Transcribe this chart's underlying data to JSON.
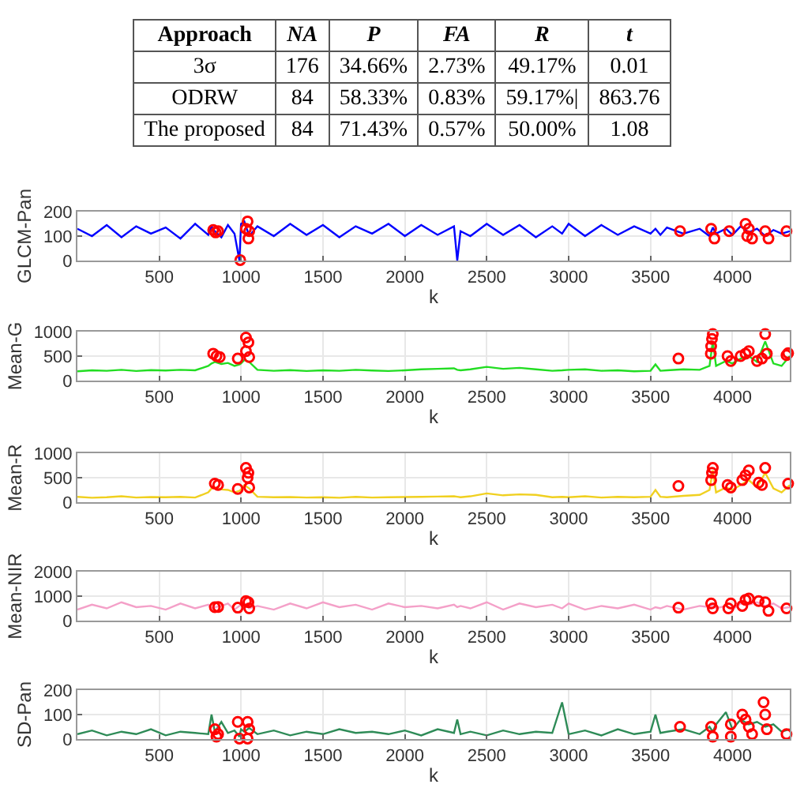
{
  "chart_data": [
    {
      "type": "other",
      "categories": [
        "Approach",
        "NA",
        "P",
        "FA",
        "R",
        "t"
      ],
      "annotations": [
        "3σ",
        "176",
        "34.66%",
        "2.73%",
        "49.17%",
        "0.01",
        "ODRW",
        "84",
        "58.33%",
        "0.83%",
        "59.17%|",
        "863.76",
        "The proposed",
        "84",
        "71.43%",
        "0.57%",
        "50.00%",
        "1.08"
      ]
    },
    {
      "type": "line",
      "xlabel": "k",
      "ylabel": "GLCM-Pan",
      "xlim": [
        1,
        4350
      ],
      "xticks": [
        500,
        1000,
        1500,
        2000,
        2500,
        3000,
        3500,
        4000
      ],
      "ylim": [
        0,
        200
      ],
      "yticks": [
        0,
        100,
        200
      ],
      "grid": true,
      "x": [
        1,
        90,
        180,
        270,
        360,
        450,
        540,
        630,
        720,
        800,
        820,
        840,
        880,
        920,
        960,
        990,
        1000,
        1020,
        1050,
        1100,
        1200,
        1300,
        1400,
        1500,
        1600,
        1700,
        1800,
        1900,
        2000,
        2100,
        2200,
        2300,
        2320,
        2340,
        2400,
        2500,
        2600,
        2700,
        2800,
        2900,
        2960,
        3000,
        3100,
        3200,
        3300,
        3400,
        3500,
        3530,
        3560,
        3600,
        3700,
        3800,
        3860,
        3880,
        3900,
        3960,
        4000,
        4050,
        4100,
        4150,
        4200,
        4250,
        4300,
        4350
      ],
      "series": [
        {
          "color": "#0000ff",
          "values": [
            130,
            100,
            145,
            95,
            140,
            110,
            135,
            90,
            150,
            105,
            140,
            120,
            95,
            145,
            110,
            0,
            150,
            160,
            100,
            140,
            100,
            150,
            105,
            145,
            95,
            140,
            110,
            150,
            100,
            145,
            105,
            140,
            0,
            120,
            100,
            150,
            105,
            145,
            95,
            140,
            110,
            150,
            100,
            145,
            105,
            140,
            110,
            130,
            105,
            135,
            110,
            130,
            100,
            135,
            110,
            130,
            105,
            140,
            115,
            130,
            100,
            125,
            110,
            120
          ]
        },
        {
          "type": "scatter",
          "marker": "circle",
          "color": "#ff0000",
          "x": [
            830,
            845,
            860,
            995,
            1030,
            1040,
            1045,
            1050,
            3680,
            3870,
            3890,
            3980,
            4080,
            4090,
            4100,
            4120,
            4200,
            4220,
            4330
          ],
          "values": [
            125,
            115,
            120,
            2,
            130,
            160,
            90,
            120,
            120,
            130,
            90,
            120,
            150,
            100,
            130,
            90,
            120,
            90,
            120
          ]
        }
      ]
    },
    {
      "type": "line",
      "xlabel": "k",
      "ylabel": "Mean-G",
      "xlim": [
        1,
        4350
      ],
      "xticks": [
        500,
        1000,
        1500,
        2000,
        2500,
        3000,
        3500,
        4000
      ],
      "ylim": [
        0,
        1000
      ],
      "yticks": [
        0,
        500,
        1000
      ],
      "grid": true,
      "x": [
        1,
        90,
        180,
        270,
        360,
        450,
        540,
        630,
        720,
        800,
        820,
        840,
        880,
        920,
        960,
        990,
        1000,
        1020,
        1050,
        1100,
        1200,
        1300,
        1400,
        1500,
        1600,
        1700,
        1800,
        1900,
        2000,
        2100,
        2200,
        2300,
        2320,
        2340,
        2400,
        2500,
        2600,
        2700,
        2800,
        2900,
        2960,
        3000,
        3100,
        3200,
        3300,
        3400,
        3500,
        3530,
        3560,
        3600,
        3700,
        3800,
        3860,
        3880,
        3900,
        3960,
        4000,
        4050,
        4100,
        4150,
        4200,
        4250,
        4300,
        4350
      ],
      "series": [
        {
          "color": "#22dd22",
          "values": [
            190,
            210,
            200,
            220,
            195,
            215,
            205,
            220,
            210,
            300,
            350,
            380,
            340,
            360,
            300,
            330,
            350,
            420,
            380,
            220,
            200,
            215,
            195,
            210,
            200,
            220,
            205,
            195,
            210,
            230,
            240,
            250,
            220,
            210,
            230,
            280,
            240,
            260,
            230,
            200,
            210,
            220,
            230,
            200,
            210,
            190,
            200,
            330,
            200,
            210,
            230,
            220,
            300,
            800,
            300,
            400,
            350,
            450,
            500,
            380,
            800,
            350,
            300,
            500
          ]
        },
        {
          "type": "scatter",
          "marker": "circle",
          "color": "#ff0000",
          "x": [
            830,
            850,
            870,
            980,
            1030,
            1045,
            1030,
            1050,
            3670,
            3880,
            3875,
            3870,
            3868,
            3970,
            3990,
            4050,
            4080,
            4100,
            4150,
            4180,
            4200,
            4210,
            4330,
            4340
          ],
          "values": [
            550,
            500,
            480,
            450,
            880,
            780,
            600,
            480,
            450,
            950,
            850,
            700,
            550,
            500,
            400,
            500,
            550,
            600,
            400,
            450,
            950,
            550,
            520,
            560
          ]
        }
      ]
    },
    {
      "type": "line",
      "xlabel": "k",
      "ylabel": "Mean-R",
      "xlim": [
        1,
        4350
      ],
      "xticks": [
        500,
        1000,
        1500,
        2000,
        2500,
        3000,
        3500,
        4000
      ],
      "ylim": [
        0,
        1000
      ],
      "yticks": [
        0,
        500,
        1000
      ],
      "grid": true,
      "x": [
        1,
        90,
        180,
        270,
        360,
        450,
        540,
        630,
        720,
        800,
        820,
        840,
        880,
        920,
        960,
        990,
        1000,
        1020,
        1050,
        1100,
        1200,
        1300,
        1400,
        1500,
        1600,
        1700,
        1800,
        1900,
        2000,
        2100,
        2200,
        2300,
        2320,
        2340,
        2400,
        2500,
        2600,
        2700,
        2800,
        2900,
        2960,
        3000,
        3100,
        3200,
        3300,
        3400,
        3500,
        3530,
        3560,
        3600,
        3700,
        3800,
        3860,
        3880,
        3900,
        3960,
        4000,
        4050,
        4100,
        4150,
        4200,
        4250,
        4300,
        4350
      ],
      "series": [
        {
          "color": "#f0d020",
          "values": [
            110,
            90,
            100,
            120,
            95,
            105,
            100,
            110,
            95,
            200,
            280,
            300,
            260,
            250,
            200,
            230,
            260,
            350,
            280,
            110,
            100,
            105,
            95,
            100,
            90,
            110,
            95,
            100,
            105,
            110,
            115,
            120,
            110,
            100,
            120,
            180,
            140,
            160,
            150,
            100,
            110,
            100,
            120,
            95,
            110,
            100,
            110,
            250,
            110,
            100,
            130,
            150,
            250,
            650,
            200,
            300,
            250,
            350,
            450,
            300,
            600,
            280,
            200,
            350
          ]
        },
        {
          "type": "scatter",
          "marker": "circle",
          "color": "#ff0000",
          "x": [
            840,
            860,
            980,
            1030,
            1045,
            1040,
            1050,
            3670,
            3880,
            3875,
            3870,
            3970,
            3990,
            4060,
            4080,
            4100,
            4160,
            4180,
            4200,
            4340
          ],
          "values": [
            380,
            350,
            270,
            700,
            600,
            500,
            300,
            330,
            700,
            600,
            450,
            350,
            300,
            450,
            550,
            650,
            400,
            350,
            700,
            380
          ]
        }
      ]
    },
    {
      "type": "line",
      "xlabel": "k",
      "ylabel": "Mean-NIR",
      "xlim": [
        1,
        4350
      ],
      "xticks": [
        500,
        1000,
        1500,
        2000,
        2500,
        3000,
        3500,
        4000
      ],
      "ylim": [
        0,
        2000
      ],
      "yticks": [
        0,
        1000,
        2000
      ],
      "grid": true,
      "x": [
        1,
        90,
        180,
        270,
        360,
        450,
        540,
        630,
        720,
        800,
        820,
        840,
        880,
        920,
        960,
        990,
        1000,
        1020,
        1050,
        1100,
        1200,
        1300,
        1400,
        1500,
        1600,
        1700,
        1800,
        1900,
        2000,
        2100,
        2200,
        2300,
        2320,
        2340,
        2400,
        2500,
        2600,
        2700,
        2800,
        2900,
        2960,
        3000,
        3100,
        3200,
        3300,
        3400,
        3500,
        3530,
        3560,
        3600,
        3700,
        3800,
        3860,
        3880,
        3900,
        3960,
        4000,
        4050,
        4100,
        4150,
        4200,
        4250,
        4300,
        4350
      ],
      "series": [
        {
          "color": "#f4a0c8",
          "values": [
            450,
            650,
            500,
            750,
            550,
            600,
            450,
            700,
            500,
            650,
            500,
            550,
            600,
            700,
            450,
            600,
            650,
            700,
            500,
            600,
            450,
            700,
            500,
            750,
            550,
            650,
            450,
            700,
            550,
            600,
            500,
            650,
            550,
            600,
            500,
            750,
            450,
            700,
            550,
            650,
            500,
            700,
            450,
            600,
            500,
            650,
            450,
            550,
            500,
            600,
            450,
            600,
            550,
            650,
            500,
            600,
            450,
            700,
            650,
            750,
            600,
            700,
            500,
            550
          ]
        },
        {
          "type": "scatter",
          "marker": "circle",
          "color": "#ff0000",
          "x": [
            840,
            860,
            980,
            1030,
            1045,
            1050,
            3670,
            3870,
            3880,
            3975,
            3990,
            4060,
            4080,
            4100,
            4160,
            4200,
            4220,
            4330
          ],
          "values": [
            550,
            560,
            530,
            800,
            750,
            500,
            530,
            700,
            500,
            500,
            700,
            600,
            850,
            900,
            800,
            750,
            400,
            500
          ]
        }
      ]
    },
    {
      "type": "line",
      "xlabel": "k",
      "ylabel": "SD-Pan",
      "xlim": [
        1,
        4350
      ],
      "xticks": [
        500,
        1000,
        1500,
        2000,
        2500,
        3000,
        3500,
        4000
      ],
      "ylim": [
        0,
        200
      ],
      "yticks": [
        0,
        100,
        200
      ],
      "grid": true,
      "x": [
        1,
        90,
        180,
        270,
        360,
        450,
        540,
        630,
        720,
        800,
        820,
        840,
        880,
        920,
        960,
        990,
        1000,
        1020,
        1050,
        1100,
        1200,
        1300,
        1400,
        1500,
        1600,
        1700,
        1800,
        1900,
        2000,
        2100,
        2200,
        2300,
        2320,
        2340,
        2400,
        2500,
        2600,
        2700,
        2800,
        2900,
        2960,
        3000,
        3100,
        3200,
        3300,
        3400,
        3500,
        3530,
        3560,
        3600,
        3700,
        3800,
        3860,
        3880,
        3900,
        3960,
        4000,
        4050,
        4100,
        4150,
        4200,
        4250,
        4300,
        4350
      ],
      "series": [
        {
          "color": "#2e8b57",
          "values": [
            20,
            35,
            15,
            30,
            20,
            40,
            15,
            30,
            25,
            20,
            100,
            30,
            70,
            25,
            35,
            10,
            40,
            30,
            45,
            20,
            35,
            15,
            30,
            20,
            40,
            25,
            30,
            20,
            35,
            15,
            40,
            25,
            80,
            20,
            30,
            15,
            35,
            20,
            30,
            25,
            150,
            20,
            35,
            15,
            40,
            20,
            30,
            100,
            25,
            30,
            40,
            20,
            50,
            30,
            60,
            110,
            40,
            80,
            60,
            70,
            50,
            60,
            30,
            40
          ]
        },
        {
          "type": "scatter",
          "marker": "circle",
          "color": "#ff0000",
          "x": [
            840,
            850,
            860,
            980,
            990,
            1040,
            1050,
            1040,
            3680,
            3870,
            3880,
            3990,
            3990,
            4060,
            4080,
            4100,
            4120,
            4190,
            4200,
            4210,
            4330
          ],
          "values": [
            40,
            10,
            20,
            70,
            2,
            70,
            40,
            2,
            50,
            50,
            10,
            60,
            10,
            100,
            80,
            50,
            20,
            150,
            100,
            40,
            20
          ]
        }
      ]
    }
  ]
}
